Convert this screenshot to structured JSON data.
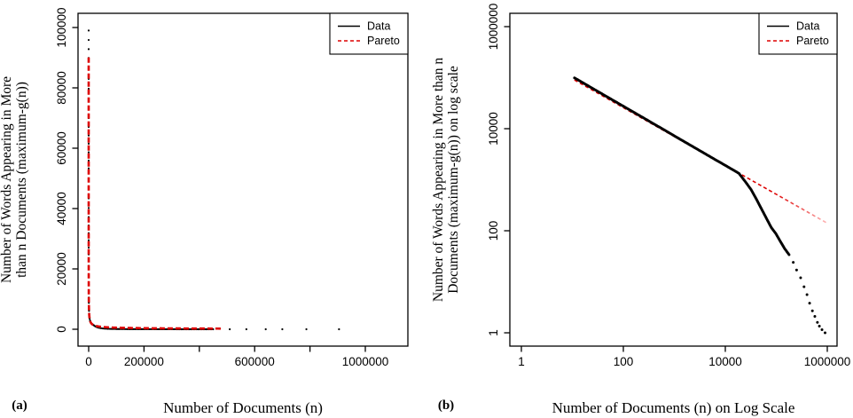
{
  "page": {
    "background": "#ffffff"
  },
  "panel_labels": {
    "a": "(a)",
    "b": "(b)"
  },
  "chart_data": {
    "type": "scatter",
    "title": "",
    "series": [
      {
        "name": "Data",
        "color": "#000000",
        "style": "points",
        "points": [
          [
            11,
            99000
          ],
          [
            13,
            89900
          ],
          [
            16,
            79700
          ],
          [
            20,
            70000
          ],
          [
            25,
            61500
          ],
          [
            32,
            53300
          ],
          [
            40,
            46800
          ],
          [
            52,
            40200
          ],
          [
            68,
            34400
          ],
          [
            89,
            29500
          ],
          [
            120,
            24800
          ],
          [
            160,
            21000
          ],
          [
            215,
            17700
          ],
          [
            290,
            14900
          ],
          [
            390,
            12500
          ],
          [
            530,
            10500
          ],
          [
            720,
            8760
          ],
          [
            980,
            7320
          ],
          [
            1340,
            6100
          ],
          [
            1840,
            5080
          ],
          [
            2520,
            4230
          ],
          [
            3450,
            3530
          ],
          [
            4740,
            2930
          ],
          [
            6500,
            2440
          ],
          [
            8900,
            2040
          ],
          [
            12200,
            1700
          ],
          [
            15500,
            1480
          ],
          [
            18500,
            1330
          ],
          [
            25000,
            900
          ],
          [
            32000,
            640
          ],
          [
            40000,
            430
          ],
          [
            50000,
            280
          ],
          [
            65000,
            170
          ],
          [
            80000,
            115
          ],
          [
            98000,
            88
          ],
          [
            120000,
            62
          ],
          [
            145000,
            45
          ],
          [
            178000,
            34
          ],
          [
            215000,
            24
          ],
          [
            250000,
            17
          ],
          [
            300000,
            12
          ],
          [
            350000,
            8
          ],
          [
            400000,
            5.6
          ],
          [
            450000,
            3.8
          ],
          [
            510000,
            2.7
          ],
          [
            570000,
            2.1
          ],
          [
            640000,
            1.6
          ],
          [
            700000,
            1.35
          ],
          [
            787000,
            1.15
          ],
          [
            905000,
            1
          ]
        ]
      },
      {
        "name": "Pareto",
        "color": "#dd0000",
        "style": "dashed-line",
        "power_law": {
          "A": 350000,
          "alpha": 0.566
        },
        "x_range": [
          11,
          1000000
        ]
      }
    ],
    "panels": [
      {
        "id": "a",
        "label": "(a)",
        "x_scale": "linear",
        "y_scale": "linear",
        "xlabel": "Number of Documents (n)",
        "ylabel_lines": [
          "Number of Words Appearing in More",
          "than n Documents (maximum-g(n))"
        ],
        "xlim": [
          -38000,
          1154000
        ],
        "ylim": [
          -5600,
          104700
        ],
        "grid": false,
        "x_ticks": [
          {
            "v": 0,
            "t": "0"
          },
          {
            "v": 200000,
            "t": "200000"
          },
          {
            "v": 400000,
            "t": ""
          },
          {
            "v": 600000,
            "t": "600000"
          },
          {
            "v": 800000,
            "t": ""
          },
          {
            "v": 1000000,
            "t": "1000000"
          }
        ],
        "y_ticks": [
          {
            "v": 0,
            "t": "0"
          },
          {
            "v": 20000,
            "t": "20000"
          },
          {
            "v": 40000,
            "t": "40000"
          },
          {
            "v": 60000,
            "t": "60000"
          },
          {
            "v": 80000,
            "t": "80000"
          },
          {
            "v": 100000,
            "t": "100000"
          }
        ],
        "legend": {
          "position": "topright",
          "entries": [
            {
              "label": "Data",
              "color": "#000000",
              "line": "solid"
            },
            {
              "label": "Pareto",
              "color": "#dd0000",
              "line": "dashed"
            }
          ]
        },
        "pareto_x_max_shown": 480000
      },
      {
        "id": "b",
        "label": "(b)",
        "x_scale": "log",
        "y_scale": "log",
        "xlabel": "Number of Documents (n) on Log Scale",
        "ylabel_lines": [
          "Number of Words Appearing in More than n",
          "Documents (maximum-g(n)) on log scale"
        ],
        "xlim": [
          0.59,
          1550000
        ],
        "ylim": [
          0.55,
          1820000
        ],
        "grid": false,
        "x_ticks": [
          {
            "v": 1,
            "t": "1"
          },
          {
            "v": 100,
            "t": "100"
          },
          {
            "v": 10000,
            "t": "10000"
          },
          {
            "v": 1000000,
            "t": "1000000"
          }
        ],
        "y_ticks": [
          {
            "v": 1,
            "t": "1"
          },
          {
            "v": 100,
            "t": "100"
          },
          {
            "v": 10000,
            "t": "10000"
          },
          {
            "v": 1000000,
            "t": "1000000"
          }
        ],
        "legend": {
          "position": "topright",
          "entries": [
            {
              "label": "Data",
              "color": "#000000",
              "line": "solid"
            },
            {
              "label": "Pareto",
              "color": "#dd0000",
              "line": "dashed"
            }
          ]
        },
        "pareto_x_max_shown": 1000000
      }
    ]
  }
}
